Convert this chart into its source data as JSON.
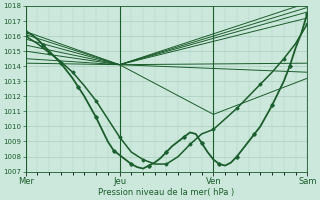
{
  "bg_color": "#cce8dc",
  "grid_color": "#aacfbf",
  "line_color": "#1a5c2a",
  "marker_color": "#1a6030",
  "xlabel": "Pression niveau de la mer( hPa )",
  "xlabel_color": "#1a5c2a",
  "xtick_labels": [
    "Mer",
    "Jeu",
    "Ven",
    "Sam"
  ],
  "xtick_positions": [
    0,
    48,
    96,
    144
  ],
  "ylim": [
    1007,
    1018
  ],
  "yticks": [
    1007,
    1008,
    1009,
    1010,
    1011,
    1012,
    1013,
    1014,
    1015,
    1016,
    1017,
    1018
  ],
  "total_hours": 144,
  "straight_lines": [
    [
      [
        0,
        1016.3
      ],
      [
        48,
        1014.1
      ],
      [
        144,
        1018.2
      ]
    ],
    [
      [
        0,
        1016.1
      ],
      [
        48,
        1014.1
      ],
      [
        144,
        1017.9
      ]
    ],
    [
      [
        0,
        1015.8
      ],
      [
        48,
        1014.1
      ],
      [
        144,
        1017.6
      ]
    ],
    [
      [
        0,
        1015.4
      ],
      [
        48,
        1014.1
      ],
      [
        144,
        1017.2
      ]
    ],
    [
      [
        0,
        1015.0
      ],
      [
        48,
        1014.1
      ],
      [
        144,
        1014.2
      ]
    ],
    [
      [
        0,
        1014.5
      ],
      [
        48,
        1014.1
      ],
      [
        144,
        1013.6
      ]
    ],
    [
      [
        0,
        1014.2
      ],
      [
        48,
        1014.1
      ],
      [
        96,
        1010.8
      ],
      [
        144,
        1013.2
      ]
    ]
  ],
  "main_series": {
    "points": [
      [
        0,
        1016.3
      ],
      [
        3,
        1016.1
      ],
      [
        6,
        1015.8
      ],
      [
        9,
        1015.4
      ],
      [
        12,
        1015.0
      ],
      [
        15,
        1014.6
      ],
      [
        18,
        1014.2
      ],
      [
        21,
        1013.7
      ],
      [
        24,
        1013.2
      ],
      [
        27,
        1012.6
      ],
      [
        30,
        1012.0
      ],
      [
        33,
        1011.3
      ],
      [
        36,
        1010.6
      ],
      [
        39,
        1009.8
      ],
      [
        42,
        1009.0
      ],
      [
        45,
        1008.4
      ],
      [
        48,
        1008.1
      ],
      [
        51,
        1007.8
      ],
      [
        54,
        1007.5
      ],
      [
        57,
        1007.3
      ],
      [
        60,
        1007.2
      ],
      [
        63,
        1007.4
      ],
      [
        66,
        1007.6
      ],
      [
        69,
        1007.9
      ],
      [
        72,
        1008.3
      ],
      [
        75,
        1008.7
      ],
      [
        78,
        1009.0
      ],
      [
        81,
        1009.3
      ],
      [
        84,
        1009.6
      ],
      [
        87,
        1009.5
      ],
      [
        90,
        1008.9
      ],
      [
        93,
        1008.3
      ],
      [
        96,
        1007.8
      ],
      [
        99,
        1007.5
      ],
      [
        102,
        1007.4
      ],
      [
        105,
        1007.6
      ],
      [
        108,
        1008.0
      ],
      [
        111,
        1008.5
      ],
      [
        114,
        1009.0
      ],
      [
        117,
        1009.5
      ],
      [
        120,
        1010.0
      ],
      [
        123,
        1010.7
      ],
      [
        126,
        1011.4
      ],
      [
        129,
        1012.2
      ],
      [
        132,
        1013.0
      ],
      [
        135,
        1014.0
      ],
      [
        138,
        1015.2
      ],
      [
        141,
        1016.2
      ],
      [
        144,
        1017.5
      ]
    ],
    "marker": true,
    "lw": 1.3,
    "markersize": 1.8,
    "markevery": 3
  },
  "second_series": {
    "points": [
      [
        0,
        1016.0
      ],
      [
        6,
        1015.5
      ],
      [
        12,
        1014.9
      ],
      [
        18,
        1014.3
      ],
      [
        24,
        1013.6
      ],
      [
        30,
        1012.7
      ],
      [
        36,
        1011.7
      ],
      [
        42,
        1010.5
      ],
      [
        48,
        1009.3
      ],
      [
        54,
        1008.3
      ],
      [
        60,
        1007.8
      ],
      [
        66,
        1007.5
      ],
      [
        72,
        1007.5
      ],
      [
        78,
        1008.0
      ],
      [
        84,
        1008.8
      ],
      [
        90,
        1009.5
      ],
      [
        96,
        1009.8
      ],
      [
        102,
        1010.5
      ],
      [
        108,
        1011.2
      ],
      [
        114,
        1012.0
      ],
      [
        120,
        1012.8
      ],
      [
        126,
        1013.6
      ],
      [
        132,
        1014.5
      ],
      [
        138,
        1015.5
      ],
      [
        144,
        1016.8
      ]
    ],
    "marker": true,
    "lw": 1.1,
    "markersize": 1.5,
    "markevery": 2
  }
}
